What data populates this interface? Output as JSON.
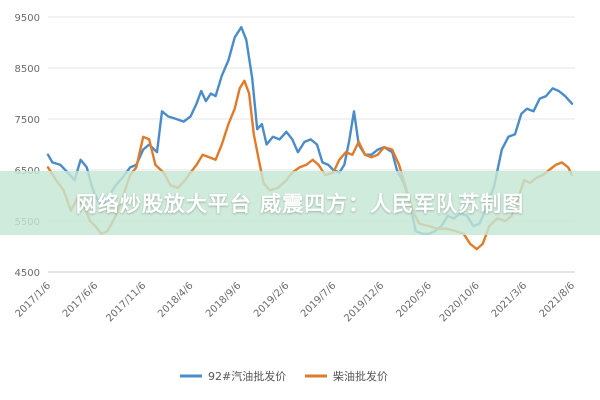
{
  "banner": {
    "text": "网络炒股放大平台 威震四方：人民军队苏制图"
  },
  "chart_data": {
    "type": "line",
    "title": "",
    "xlabel": "",
    "ylabel": "",
    "ylim": [
      4500,
      9500
    ],
    "yticks": [
      4500,
      5500,
      6500,
      7500,
      8500,
      9500
    ],
    "xlim": [
      "2017-01-06",
      "2021-08-06"
    ],
    "xticks": [
      "2017/1/6",
      "2017/6/6",
      "2017/11/6",
      "2018/4/6",
      "2018/9/6",
      "2019/2/6",
      "2019/7/6",
      "2019/12/6",
      "2020/5/6",
      "2020/10/6",
      "2021/3/6",
      "2021/8/6"
    ],
    "grid": "horizontal",
    "legend": "bottom",
    "series": [
      {
        "name": "92#汽油批发价",
        "color": "#4a8cc9",
        "points": [
          [
            "2017-01-06",
            6800
          ],
          [
            "2017-01-20",
            6650
          ],
          [
            "2017-02-15",
            6600
          ],
          [
            "2017-03-10",
            6450
          ],
          [
            "2017-04-01",
            6300
          ],
          [
            "2017-04-20",
            6700
          ],
          [
            "2017-05-10",
            6550
          ],
          [
            "2017-05-25",
            6200
          ],
          [
            "2017-06-06",
            6000
          ],
          [
            "2017-06-25",
            5800
          ],
          [
            "2017-07-15",
            5950
          ],
          [
            "2017-08-10",
            6200
          ],
          [
            "2017-09-01",
            6350
          ],
          [
            "2017-09-25",
            6550
          ],
          [
            "2017-10-15",
            6600
          ],
          [
            "2017-11-06",
            6900
          ],
          [
            "2017-11-25",
            7000
          ],
          [
            "2017-12-20",
            6850
          ],
          [
            "2018-01-05",
            7650
          ],
          [
            "2018-01-25",
            7550
          ],
          [
            "2018-02-20",
            7500
          ],
          [
            "2018-03-15",
            7450
          ],
          [
            "2018-04-06",
            7550
          ],
          [
            "2018-04-25",
            7800
          ],
          [
            "2018-05-10",
            8050
          ],
          [
            "2018-05-25",
            7850
          ],
          [
            "2018-06-10",
            8000
          ],
          [
            "2018-06-25",
            7950
          ],
          [
            "2018-07-15",
            8350
          ],
          [
            "2018-08-05",
            8650
          ],
          [
            "2018-08-25",
            9100
          ],
          [
            "2018-09-15",
            9300
          ],
          [
            "2018-10-01",
            9050
          ],
          [
            "2018-10-20",
            8300
          ],
          [
            "2018-11-05",
            7300
          ],
          [
            "2018-11-20",
            7400
          ],
          [
            "2018-12-05",
            7000
          ],
          [
            "2018-12-25",
            7150
          ],
          [
            "2019-01-15",
            7100
          ],
          [
            "2019-02-06",
            7250
          ],
          [
            "2019-02-25",
            7100
          ],
          [
            "2019-03-15",
            6850
          ],
          [
            "2019-04-05",
            7050
          ],
          [
            "2019-04-25",
            7100
          ],
          [
            "2019-05-15",
            7000
          ],
          [
            "2019-06-01",
            6650
          ],
          [
            "2019-06-20",
            6600
          ],
          [
            "2019-07-06",
            6500
          ],
          [
            "2019-07-25",
            6450
          ],
          [
            "2019-08-10",
            6600
          ],
          [
            "2019-08-25",
            7050
          ],
          [
            "2019-09-10",
            7650
          ],
          [
            "2019-09-25",
            7000
          ],
          [
            "2019-10-15",
            6800
          ],
          [
            "2019-11-05",
            6800
          ],
          [
            "2019-11-25",
            6900
          ],
          [
            "2019-12-15",
            6950
          ],
          [
            "2020-01-10",
            6850
          ],
          [
            "2020-01-25",
            6500
          ],
          [
            "2020-02-15",
            6250
          ],
          [
            "2020-03-05",
            5900
          ],
          [
            "2020-03-25",
            5300
          ],
          [
            "2020-04-15",
            5250
          ],
          [
            "2020-05-06",
            5250
          ],
          [
            "2020-05-25",
            5300
          ],
          [
            "2020-06-15",
            5400
          ],
          [
            "2020-07-05",
            5600
          ],
          [
            "2020-07-25",
            5550
          ],
          [
            "2020-08-15",
            5650
          ],
          [
            "2020-09-05",
            5600
          ],
          [
            "2020-09-25",
            5400
          ],
          [
            "2020-10-15",
            5450
          ],
          [
            "2020-11-05",
            5750
          ],
          [
            "2020-12-01",
            6200
          ],
          [
            "2020-12-25",
            6900
          ],
          [
            "2021-01-15",
            7150
          ],
          [
            "2021-02-05",
            7200
          ],
          [
            "2021-02-25",
            7600
          ],
          [
            "2021-03-15",
            7700
          ],
          [
            "2021-04-05",
            7650
          ],
          [
            "2021-04-25",
            7900
          ],
          [
            "2021-05-15",
            7950
          ],
          [
            "2021-06-05",
            8100
          ],
          [
            "2021-06-25",
            8050
          ],
          [
            "2021-07-15",
            7950
          ],
          [
            "2021-08-06",
            7800
          ]
        ]
      },
      {
        "name": "柴油批发价",
        "color": "#e07b2a",
        "points": [
          [
            "2017-01-06",
            6550
          ],
          [
            "2017-02-01",
            6300
          ],
          [
            "2017-02-25",
            6100
          ],
          [
            "2017-03-20",
            5700
          ],
          [
            "2017-04-10",
            5950
          ],
          [
            "2017-05-01",
            5800
          ],
          [
            "2017-05-20",
            5500
          ],
          [
            "2017-06-06",
            5400
          ],
          [
            "2017-06-25",
            5250
          ],
          [
            "2017-07-15",
            5300
          ],
          [
            "2017-08-10",
            5600
          ],
          [
            "2017-09-01",
            5950
          ],
          [
            "2017-09-25",
            6400
          ],
          [
            "2017-10-15",
            6550
          ],
          [
            "2017-11-06",
            7150
          ],
          [
            "2017-11-25",
            7100
          ],
          [
            "2017-12-15",
            6600
          ],
          [
            "2018-01-10",
            6450
          ],
          [
            "2018-02-01",
            6200
          ],
          [
            "2018-02-25",
            6150
          ],
          [
            "2018-03-20",
            6300
          ],
          [
            "2018-04-06",
            6450
          ],
          [
            "2018-04-25",
            6600
          ],
          [
            "2018-05-15",
            6800
          ],
          [
            "2018-06-05",
            6750
          ],
          [
            "2018-06-25",
            6700
          ],
          [
            "2018-07-15",
            7000
          ],
          [
            "2018-08-05",
            7400
          ],
          [
            "2018-08-25",
            7700
          ],
          [
            "2018-09-10",
            8100
          ],
          [
            "2018-09-25",
            8250
          ],
          [
            "2018-10-10",
            8000
          ],
          [
            "2018-10-25",
            7200
          ],
          [
            "2018-11-10",
            6700
          ],
          [
            "2018-11-25",
            6250
          ],
          [
            "2018-12-15",
            6100
          ],
          [
            "2019-01-10",
            6150
          ],
          [
            "2019-02-06",
            6300
          ],
          [
            "2019-02-25",
            6450
          ],
          [
            "2019-03-20",
            6550
          ],
          [
            "2019-04-10",
            6600
          ],
          [
            "2019-05-01",
            6700
          ],
          [
            "2019-05-20",
            6600
          ],
          [
            "2019-06-10",
            6400
          ],
          [
            "2019-07-06",
            6450
          ],
          [
            "2019-07-25",
            6700
          ],
          [
            "2019-08-15",
            6850
          ],
          [
            "2019-09-05",
            6800
          ],
          [
            "2019-09-25",
            7050
          ],
          [
            "2019-10-15",
            6800
          ],
          [
            "2019-11-05",
            6750
          ],
          [
            "2019-11-25",
            6800
          ],
          [
            "2019-12-15",
            6950
          ],
          [
            "2020-01-10",
            6900
          ],
          [
            "2020-02-01",
            6600
          ],
          [
            "2020-02-25",
            6100
          ],
          [
            "2020-03-15",
            5700
          ],
          [
            "2020-04-05",
            5450
          ],
          [
            "2020-05-06",
            5400
          ],
          [
            "2020-06-01",
            5350
          ],
          [
            "2020-07-01",
            5350
          ],
          [
            "2020-08-01",
            5300
          ],
          [
            "2020-08-25",
            5250
          ],
          [
            "2020-09-15",
            5050
          ],
          [
            "2020-10-06",
            4950
          ],
          [
            "2020-10-25",
            5050
          ],
          [
            "2020-11-15",
            5400
          ],
          [
            "2020-12-10",
            5550
          ],
          [
            "2021-01-05",
            5500
          ],
          [
            "2021-01-25",
            5600
          ],
          [
            "2021-02-15",
            5950
          ],
          [
            "2021-03-06",
            6300
          ],
          [
            "2021-03-25",
            6250
          ],
          [
            "2021-04-15",
            6350
          ],
          [
            "2021-05-05",
            6400
          ],
          [
            "2021-05-25",
            6500
          ],
          [
            "2021-06-15",
            6600
          ],
          [
            "2021-07-05",
            6650
          ],
          [
            "2021-07-25",
            6550
          ],
          [
            "2021-08-06",
            6400
          ]
        ]
      }
    ]
  }
}
